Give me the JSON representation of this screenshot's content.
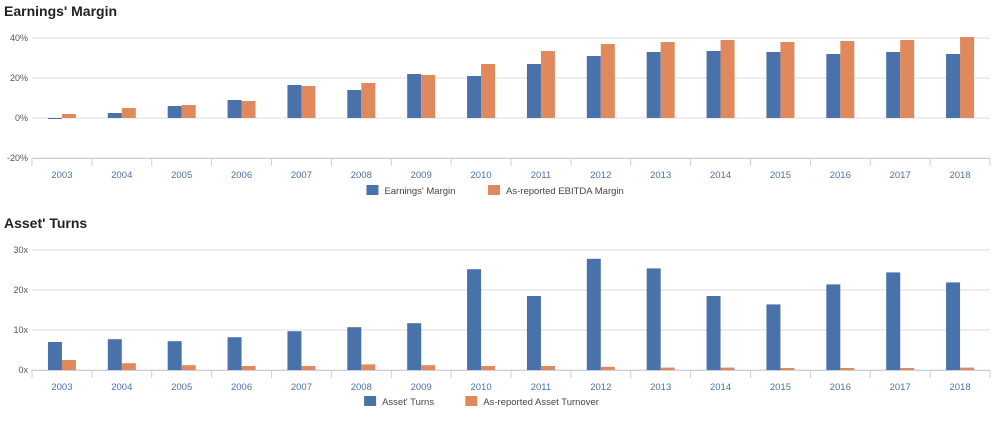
{
  "theme": {
    "series_colors": [
      "#4a72aa",
      "#e0895c"
    ],
    "grid_color": "#dcdcdc",
    "axis_text_color": "#555555",
    "category_text_color": "#4a72aa"
  },
  "chart_data": [
    {
      "type": "bar",
      "title": "Earnings' Margin",
      "categories": [
        "2003",
        "2004",
        "2005",
        "2006",
        "2007",
        "2008",
        "2009",
        "2010",
        "2011",
        "2012",
        "2013",
        "2014",
        "2015",
        "2016",
        "2017",
        "2018"
      ],
      "series": [
        {
          "name": "Earnings' Margin",
          "values": [
            -0.5,
            2.5,
            6,
            9,
            16.5,
            14,
            22,
            21,
            27,
            31,
            33,
            33.5,
            33,
            32,
            33,
            32
          ]
        },
        {
          "name": "As-reported EBITDA Margin",
          "values": [
            2,
            5,
            6.5,
            8.5,
            16,
            17.5,
            21.5,
            27,
            33.5,
            37,
            38,
            39,
            38,
            38.5,
            39,
            40.5
          ]
        }
      ],
      "y_ticks": [
        -20,
        0,
        20,
        40
      ],
      "y_tick_labels": [
        "-20%",
        "0%",
        "20%",
        "40%"
      ],
      "ylim": [
        -20,
        40
      ],
      "grid": true,
      "legend_position": "bottom"
    },
    {
      "type": "bar",
      "title": "Asset' Turns",
      "categories": [
        "2003",
        "2004",
        "2005",
        "2006",
        "2007",
        "2008",
        "2009",
        "2010",
        "2011",
        "2012",
        "2013",
        "2014",
        "2015",
        "2016",
        "2017",
        "2018"
      ],
      "series": [
        {
          "name": "Asset' Turns",
          "values": [
            7,
            7.7,
            7.2,
            8.2,
            9.7,
            10.7,
            11.7,
            25.2,
            18.5,
            27.8,
            25.4,
            18.5,
            16.4,
            21.4,
            24.4,
            21.9
          ]
        },
        {
          "name": "As-reported Asset Turnover",
          "values": [
            2.5,
            1.7,
            1.2,
            1,
            1,
            1.4,
            1.2,
            1,
            1,
            0.8,
            0.6,
            0.6,
            0.5,
            0.5,
            0.5,
            0.6
          ]
        }
      ],
      "y_ticks": [
        0,
        10,
        20,
        30
      ],
      "y_tick_labels": [
        "0x",
        "10x",
        "20x",
        "30x"
      ],
      "ylim": [
        0,
        30
      ],
      "grid": true,
      "legend_position": "bottom"
    }
  ]
}
